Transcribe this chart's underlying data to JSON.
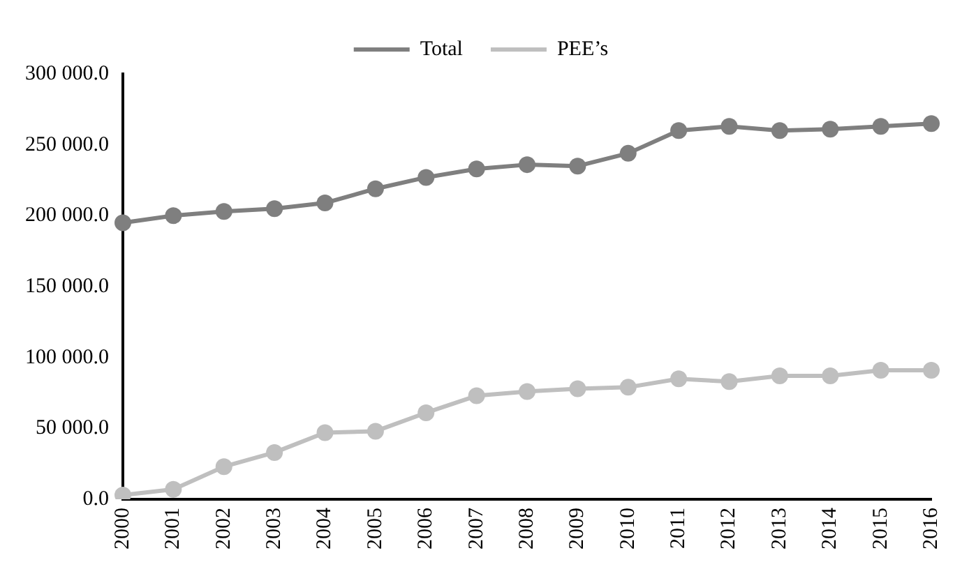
{
  "chart_data": {
    "type": "line",
    "categories": [
      "2000",
      "2001",
      "2002",
      "2003",
      "2004",
      "2005",
      "2006",
      "2007",
      "2008",
      "2009",
      "2010",
      "2011",
      "2012",
      "2013",
      "2014",
      "2015",
      "2016"
    ],
    "series": [
      {
        "name": "Total",
        "color": "#7f7f7f",
        "values": [
          195000,
          200000,
          203000,
          205000,
          209000,
          219000,
          227000,
          233000,
          236000,
          235000,
          244000,
          260000,
          263000,
          260000,
          261000,
          263000,
          265000
        ]
      },
      {
        "name": "PEE’s",
        "color": "#bfbfbf",
        "values": [
          3000,
          7000,
          23000,
          33000,
          47000,
          48000,
          61000,
          73000,
          76000,
          78000,
          79000,
          85000,
          83000,
          87000,
          87000,
          91000,
          91000
        ]
      }
    ],
    "ylim": [
      0,
      300000
    ],
    "yticks": [
      {
        "value": 0,
        "label": "0.0"
      },
      {
        "value": 50000,
        "label": "50 000.0"
      },
      {
        "value": 100000,
        "label": "100 000.0"
      },
      {
        "value": 150000,
        "label": "150 000.0"
      },
      {
        "value": 200000,
        "label": "200 000.0"
      },
      {
        "value": 250000,
        "label": "250 000.0"
      },
      {
        "value": 300000,
        "label": "300 000.0"
      }
    ],
    "grid": false,
    "legend": "top",
    "marker": "circle",
    "line_style": "solid"
  }
}
